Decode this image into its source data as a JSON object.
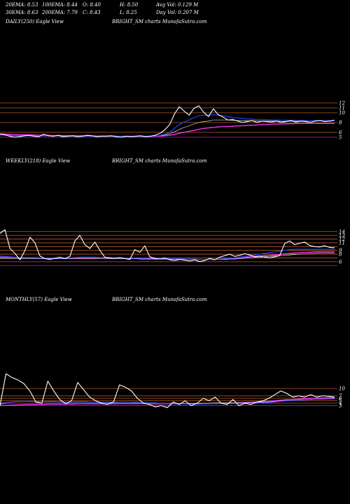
{
  "stats": {
    "row1": [
      "20EMA: 8.53",
      "100EMA: 8.44",
      "O: 8.40",
      "H: 8.50",
      "Avg Vol: 0.129 M"
    ],
    "row2": [
      "30EMA: 8.63",
      "200EMA: 7.79",
      "C: 8.43",
      "L: 8.25",
      "Day Vol: 0.207 M"
    ]
  },
  "panels": [
    {
      "label": "DAILY(250) Eagle  View",
      "source": "BRIGHT_SM charts MunafaSutra.com"
    },
    {
      "label": "WEEKLY(218) Eagle  View",
      "source": "BRIGHT_SM charts MunafaSutra.com"
    },
    {
      "label": "MONTHLY(57) Eagle  View",
      "source": "BRIGHT_SM charts MunafaSutra.com"
    }
  ],
  "colors": {
    "price": "#ffffff",
    "ema_short": "#2244ff",
    "ema_mid": "#ff33ff",
    "ema_long": "#ffffff",
    "level": "#b85a28",
    "level_magenta": "#cc22aa"
  },
  "chart_data": [
    {
      "type": "line",
      "title": "DAILY(250) Eagle View",
      "ylim": [
        3,
        13
      ],
      "yticks": [
        "12",
        "11",
        "10",
        "8",
        "6",
        "5"
      ],
      "ytick_values": [
        12,
        11,
        10,
        8,
        6,
        5
      ],
      "levels": [
        12,
        11,
        10,
        8,
        6,
        5
      ],
      "series": [
        {
          "role": "price",
          "values": [
            5.6,
            5.5,
            5.2,
            5.0,
            5.1,
            5.3,
            5.4,
            5.2,
            5.1,
            5.6,
            5.3,
            5.2,
            5.4,
            5.1,
            5.2,
            5.3,
            5.1,
            5.2,
            5.4,
            5.3,
            5.1,
            5.2,
            5.2,
            5.3,
            5.1,
            5.0,
            5.2,
            5.1,
            5.2,
            5.3,
            5.1,
            5.2,
            5.4,
            5.8,
            6.5,
            7.6,
            9.8,
            11.2,
            10.3,
            9.5,
            10.9,
            11.4,
            10.1,
            9.2,
            10.8,
            9.6,
            9.1,
            8.5,
            8.6,
            8.3,
            8.0,
            8.2,
            8.4,
            8.0,
            8.3,
            8.2,
            8.1,
            8.3,
            8.0,
            8.2,
            8.4,
            8.1,
            8.3,
            8.2,
            8.0,
            8.3,
            8.4,
            8.2,
            8.3,
            8.43
          ]
        },
        {
          "role": "ema_short",
          "values": [
            5.5,
            5.4,
            5.35,
            5.3,
            5.3,
            5.3,
            5.3,
            5.3,
            5.3,
            5.3,
            5.3,
            5.3,
            5.3,
            5.25,
            5.25,
            5.25,
            5.25,
            5.25,
            5.25,
            5.25,
            5.25,
            5.25,
            5.25,
            5.25,
            5.25,
            5.2,
            5.2,
            5.2,
            5.2,
            5.2,
            5.2,
            5.2,
            5.25,
            5.35,
            5.6,
            6.0,
            6.8,
            7.6,
            8.1,
            8.5,
            9.0,
            9.4,
            9.5,
            9.5,
            9.6,
            9.5,
            9.4,
            9.2,
            9.0,
            8.9,
            8.8,
            8.7,
            8.7,
            8.6,
            8.6,
            8.55,
            8.5,
            8.5,
            8.45,
            8.45,
            8.45,
            8.4,
            8.4,
            8.4,
            8.35,
            8.4,
            8.4,
            8.4,
            8.4,
            8.53
          ]
        },
        {
          "role": "ema_mid",
          "values": [
            5.7,
            5.65,
            5.6,
            5.55,
            5.5,
            5.5,
            5.45,
            5.45,
            5.4,
            5.4,
            5.4,
            5.35,
            5.35,
            5.35,
            5.3,
            5.3,
            5.3,
            5.3,
            5.25,
            5.25,
            5.25,
            5.25,
            5.25,
            5.25,
            5.2,
            5.2,
            5.2,
            5.2,
            5.2,
            5.2,
            5.2,
            5.2,
            5.2,
            5.25,
            5.3,
            5.4,
            5.55,
            5.8,
            6.0,
            6.2,
            6.4,
            6.6,
            6.8,
            6.9,
            7.0,
            7.1,
            7.15,
            7.2,
            7.25,
            7.3,
            7.35,
            7.4,
            7.45,
            7.5,
            7.55,
            7.6,
            7.65,
            7.7,
            7.7,
            7.75,
            7.75,
            7.8,
            7.8,
            7.8,
            7.8,
            7.8,
            7.8,
            7.8,
            7.8,
            7.79
          ]
        },
        {
          "role": "ema_long",
          "values": [
            5.5,
            5.45,
            5.4,
            5.35,
            5.35,
            5.3,
            5.3,
            5.3,
            5.3,
            5.3,
            5.3,
            5.3,
            5.25,
            5.25,
            5.25,
            5.25,
            5.25,
            5.25,
            5.25,
            5.25,
            5.2,
            5.2,
            5.2,
            5.2,
            5.2,
            5.2,
            5.2,
            5.2,
            5.2,
            5.2,
            5.2,
            5.2,
            5.25,
            5.3,
            5.45,
            5.7,
            6.1,
            6.6,
            7.0,
            7.3,
            7.7,
            8.0,
            8.2,
            8.3,
            8.5,
            8.5,
            8.5,
            8.5,
            8.45,
            8.4,
            8.4,
            8.35,
            8.35,
            8.3,
            8.3,
            8.3,
            8.3,
            8.3,
            8.25,
            8.25,
            8.3,
            8.3,
            8.3,
            8.3,
            8.3,
            8.35,
            8.4,
            8.4,
            8.4,
            8.44
          ]
        }
      ]
    },
    {
      "type": "line",
      "title": "WEEKLY(218) Eagle View",
      "ylim": [
        3,
        16
      ],
      "yticks": [
        "14",
        "13",
        "12",
        "11",
        "9",
        "8",
        "6"
      ],
      "ytick_values": [
        14,
        13,
        12,
        11,
        9,
        8,
        6
      ],
      "levels": [
        14,
        13,
        12,
        11,
        10,
        9,
        8,
        7,
        6,
        5
      ],
      "series": [
        {
          "role": "price",
          "values": [
            13.5,
            14.5,
            9.5,
            8.2,
            6.5,
            9.0,
            12.5,
            11.0,
            7.5,
            6.8,
            6.6,
            6.9,
            7.2,
            6.8,
            7.4,
            11.5,
            13.0,
            10.5,
            9.5,
            11.2,
            9.0,
            7.2,
            7.0,
            6.9,
            7.1,
            6.8,
            6.6,
            9.2,
            8.5,
            10.2,
            7.3,
            6.9,
            6.7,
            7.0,
            6.5,
            6.3,
            6.6,
            6.4,
            6.2,
            6.5,
            6.0,
            6.3,
            6.9,
            6.5,
            7.2,
            7.6,
            8.0,
            7.4,
            7.7,
            8.1,
            7.8,
            7.3,
            7.5,
            7.2,
            7.0,
            7.3,
            7.6,
            10.8,
            11.5,
            10.5,
            10.9,
            11.2,
            10.3,
            10.0,
            9.9,
            10.2,
            9.8,
            9.7
          ]
        },
        {
          "role": "ema_short",
          "values": [
            7.5,
            7.4,
            7.3,
            7.2,
            7.1,
            7.1,
            7.1,
            7.1,
            7.0,
            7.0,
            7.0,
            7.0,
            7.0,
            7.0,
            7.0,
            7.1,
            7.2,
            7.2,
            7.2,
            7.2,
            7.1,
            7.1,
            7.1,
            7.0,
            7.0,
            7.0,
            7.0,
            7.0,
            7.0,
            7.0,
            7.0,
            7.0,
            6.9,
            6.9,
            6.8,
            6.8,
            6.8,
            6.7,
            6.7,
            6.7,
            6.6,
            6.6,
            6.6,
            6.6,
            6.7,
            6.8,
            6.9,
            7.0,
            7.2,
            7.4,
            7.6,
            7.8,
            8.0,
            8.2,
            8.4,
            8.6,
            8.8,
            9.0,
            9.2,
            9.3,
            9.3,
            9.3,
            9.3,
            9.3,
            9.3,
            9.3,
            9.3,
            9.3
          ]
        },
        {
          "role": "ema_mid",
          "values": [
            7.2,
            7.2,
            7.1,
            7.1,
            7.0,
            7.0,
            7.0,
            7.0,
            6.9,
            6.9,
            6.9,
            6.9,
            6.9,
            6.9,
            6.9,
            6.9,
            7.0,
            7.0,
            7.0,
            7.0,
            7.0,
            7.0,
            6.9,
            6.9,
            6.9,
            6.9,
            6.9,
            6.9,
            6.9,
            6.9,
            6.8,
            6.8,
            6.8,
            6.8,
            6.7,
            6.7,
            6.7,
            6.7,
            6.7,
            6.6,
            6.6,
            6.6,
            6.6,
            6.6,
            6.6,
            6.7,
            6.8,
            6.9,
            7.0,
            7.1,
            7.3,
            7.4,
            7.5,
            7.6,
            7.7,
            7.8,
            7.9,
            8.1,
            8.2,
            8.3,
            8.4,
            8.5,
            8.5,
            8.6,
            8.6,
            8.6,
            8.6,
            8.6
          ]
        },
        {
          "role": "ema_long",
          "values": [
            6.8,
            6.8,
            6.8,
            6.8,
            6.8,
            6.8,
            6.8,
            6.8,
            6.8,
            6.8,
            6.8,
            6.8,
            6.8,
            6.8,
            6.8,
            6.8,
            6.8,
            6.8,
            6.8,
            6.8,
            6.8,
            6.8,
            6.8,
            6.8,
            6.8,
            6.8,
            6.8,
            6.8,
            6.7,
            6.7,
            6.7,
            6.7,
            6.7,
            6.7,
            6.7,
            6.7,
            6.6,
            6.6,
            6.6,
            6.6,
            6.6,
            6.6,
            6.6,
            6.6,
            6.6,
            6.6,
            6.7,
            6.7,
            6.8,
            6.9,
            7.0,
            7.1,
            7.2,
            7.3,
            7.4,
            7.5,
            7.6,
            7.7,
            7.8,
            7.9,
            8.0,
            8.1,
            8.2,
            8.2,
            8.3,
            8.3,
            8.3,
            8.3
          ]
        }
      ]
    },
    {
      "type": "line",
      "title": "MONTHLY(57) Eagle View",
      "ylim": [
        0,
        20
      ],
      "yticks": [
        "10",
        "7",
        "6",
        "5",
        "4",
        "3"
      ],
      "ytick_values": [
        10,
        7,
        6,
        5,
        4,
        3
      ],
      "levels": [
        10,
        7,
        6,
        5,
        4,
        3
      ],
      "series": [
        {
          "role": "price",
          "values": [
            3.0,
            16.0,
            14.5,
            13.5,
            12.0,
            9.0,
            4.5,
            4.0,
            13.0,
            9.0,
            5.5,
            3.8,
            5.0,
            12.5,
            9.5,
            6.5,
            5.0,
            4.0,
            3.5,
            4.5,
            11.5,
            10.5,
            9.0,
            6.0,
            4.0,
            3.5,
            2.5,
            3.0,
            2.2,
            4.5,
            3.5,
            5.0,
            3.0,
            4.0,
            6.0,
            5.0,
            6.5,
            4.0,
            3.5,
            5.5,
            3.0,
            4.0,
            3.5,
            4.5,
            5.0,
            6.0,
            7.5,
            9.0,
            8.0,
            6.5,
            7.0,
            6.5,
            7.5,
            6.5,
            7.0,
            6.8,
            6.5
          ]
        },
        {
          "role": "ema_short",
          "values": [
            3.5,
            4.0,
            4.5,
            4.7,
            4.8,
            4.8,
            4.7,
            4.6,
            4.6,
            4.6,
            4.5,
            4.4,
            4.4,
            4.5,
            4.5,
            4.4,
            4.4,
            4.3,
            4.3,
            4.3,
            4.4,
            4.4,
            4.4,
            4.3,
            4.2,
            4.1,
            4.0,
            3.9,
            3.8,
            3.7,
            3.7,
            3.7,
            3.6,
            3.6,
            3.7,
            3.7,
            3.8,
            3.8,
            3.8,
            3.9,
            3.9,
            3.9,
            4.0,
            4.0,
            4.1,
            4.3,
            4.5,
            4.8,
            5.0,
            5.2,
            5.3,
            5.4,
            5.5,
            5.6,
            5.6,
            5.7,
            5.7
          ]
        },
        {
          "role": "ema_mid",
          "values": [
            3.0,
            3.1,
            3.2,
            3.3,
            3.4,
            3.5,
            3.5,
            3.5,
            3.6,
            3.6,
            3.6,
            3.6,
            3.6,
            3.7,
            3.7,
            3.7,
            3.7,
            3.7,
            3.7,
            3.7,
            3.8,
            3.8,
            3.8,
            3.8,
            3.8,
            3.8,
            3.7,
            3.7,
            3.7,
            3.7,
            3.7,
            3.7,
            3.7,
            3.7,
            3.8,
            3.8,
            3.9,
            3.9,
            4.0,
            4.1,
            4.2,
            4.3,
            4.4,
            4.5,
            4.6,
            4.8,
            5.0,
            5.2,
            5.4,
            5.5,
            5.7,
            5.8,
            5.9,
            6.0,
            6.1,
            6.2,
            6.2
          ]
        },
        {
          "role": "ema_long",
          "values": [
            3.8,
            4.2,
            4.5,
            4.7,
            4.8,
            4.7,
            4.6,
            4.6,
            4.7,
            4.7,
            4.6,
            4.5,
            4.5,
            4.6,
            4.6,
            4.5,
            4.5,
            4.4,
            4.4,
            4.4,
            4.5,
            4.5,
            4.5,
            4.4,
            4.3,
            4.2,
            4.1,
            4.0,
            3.9,
            3.9,
            3.9,
            3.9,
            3.9,
            3.9,
            4.0,
            4.0,
            4.1,
            4.1,
            4.1,
            4.2,
            4.2,
            4.2,
            4.3,
            4.3,
            4.4,
            4.5,
            4.7,
            5.0,
            5.2,
            5.3,
            5.4,
            5.5,
            5.6,
            5.7,
            5.7,
            5.8,
            5.8
          ]
        }
      ]
    }
  ]
}
